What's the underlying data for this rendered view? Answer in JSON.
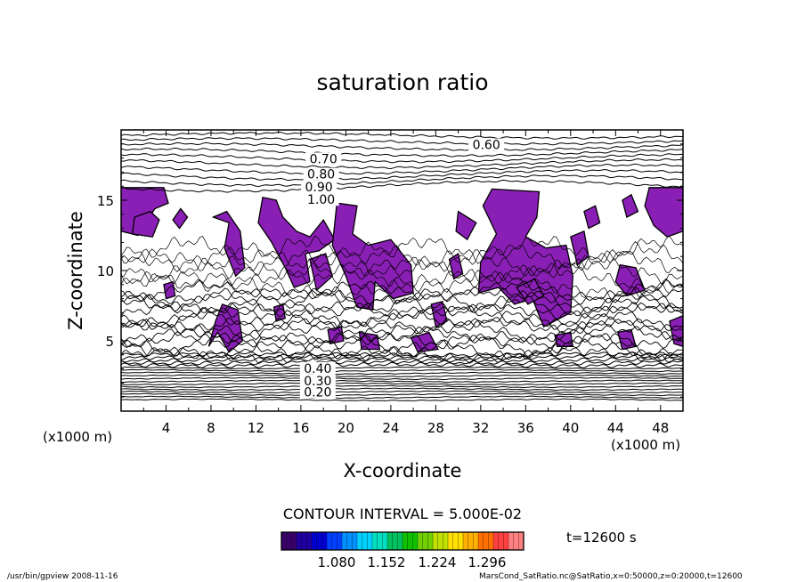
{
  "chart_data": {
    "type": "contour",
    "title": "saturation ratio",
    "xlabel": "X-coordinate",
    "ylabel": "Z-coordinate",
    "x_unit": "(x1000 m)",
    "y_unit": "(x1000 m)",
    "xlim": [
      0,
      50
    ],
    "ylim": [
      0,
      20
    ],
    "x_ticks": [
      4,
      8,
      12,
      16,
      20,
      24,
      28,
      32,
      36,
      40,
      44,
      48
    ],
    "y_ticks": [
      5,
      10,
      15
    ],
    "contour_interval_text": "CONTOUR INTERVAL = 5.000E-02",
    "contour_labels": [
      {
        "text": "0.60",
        "x": 32.5,
        "z": 18.7
      },
      {
        "text": "0.70",
        "x": 18.0,
        "z": 17.7
      },
      {
        "text": "0.80",
        "x": 17.8,
        "z": 16.6
      },
      {
        "text": "0.90",
        "x": 17.6,
        "z": 15.7
      },
      {
        "text": "1.00",
        "x": 17.8,
        "z": 14.8
      },
      {
        "text": "0.20",
        "x": 17.5,
        "z": 1.1
      },
      {
        "text": "0.30",
        "x": 17.5,
        "z": 1.9
      },
      {
        "text": "0.40",
        "x": 17.5,
        "z": 2.8
      }
    ],
    "shaded_threshold": 1.0,
    "shade_color": "#8a1fb5",
    "colorbar": {
      "tick_labels": [
        "1.080",
        "1.152",
        "1.224",
        "1.296"
      ],
      "colors": [
        "#3a006a",
        "#2000a0",
        "#0000d0",
        "#0040ff",
        "#0090ff",
        "#00d0ff",
        "#00e0c0",
        "#00c060",
        "#10c000",
        "#70d000",
        "#c0e000",
        "#ffe000",
        "#ffb000",
        "#ff7000",
        "#ff4040",
        "#ff8080"
      ]
    },
    "time_text": "t=12600 s",
    "legend": "none",
    "grid": false
  },
  "footer": {
    "left": "/usr/bin/gpview   2008-11-16",
    "right": "MarsCond_SatRatio.nc@SatRatio,x=0:50000,z=0:20000,t=12600"
  }
}
